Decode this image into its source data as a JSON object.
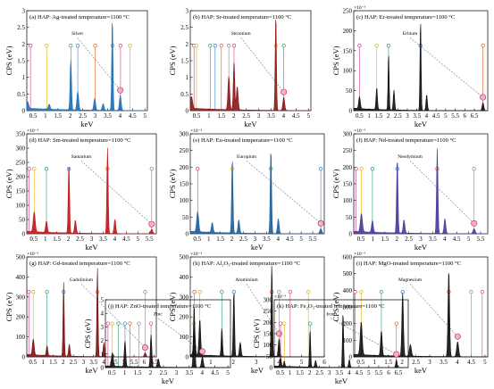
{
  "figure": {
    "panels": [
      {
        "label": "(a)",
        "caption": "HAP: Ag-treated temperature=1100 °C",
        "element_label": "Silver",
        "ylabel": "CPS (eV)",
        "xlabel": "keV",
        "exponent": "",
        "color": "#1f6fb8",
        "chart_data": {
          "type": "line",
          "xlim": [
            0.25,
            5.1
          ],
          "ylim": [
            0,
            3.0
          ],
          "xticks": [
            0.5,
            1.0,
            1.5,
            2.0,
            2.5,
            3.0,
            3.5,
            4.0,
            4.5,
            5.0
          ],
          "yticks": [
            0,
            0.5,
            1.0,
            1.5,
            2.0,
            2.5,
            3.0
          ],
          "peaks": [
            {
              "x": 0.28,
              "y": 0.2,
              "w": 0.06
            },
            {
              "x": 1.15,
              "y": 0.15,
              "w": 0.05
            },
            {
              "x": 2.02,
              "y": 1.5,
              "w": 0.04
            },
            {
              "x": 2.3,
              "y": 0.55,
              "w": 0.05
            },
            {
              "x": 2.98,
              "y": 0.35,
              "w": 0.05
            },
            {
              "x": 3.32,
              "y": 0.2,
              "w": 0.05
            },
            {
              "x": 3.69,
              "y": 2.75,
              "w": 0.035
            },
            {
              "x": 4.01,
              "y": 0.45,
              "w": 0.05
            }
          ],
          "markers": [
            0.4,
            1.05,
            2.02,
            2.3,
            3.0,
            3.7,
            4.02,
            4.4
          ]
        }
      },
      {
        "label": "(b)",
        "caption": "HAP: Sr-treated temperature=1100 °C",
        "element_label": "Strontium",
        "ylabel": "CPS (eV)",
        "xlabel": "keV",
        "exponent": "",
        "color": "#8b1a1a",
        "chart_data": {
          "type": "line",
          "xlim": [
            0.25,
            5.1
          ],
          "ylim": [
            0,
            3.0
          ],
          "xticks": [
            0.5,
            1.0,
            1.5,
            2.0,
            2.5,
            3.0,
            3.5,
            4.0,
            4.5,
            5.0
          ],
          "yticks": [
            0,
            0.5,
            1.0,
            1.5,
            2.0,
            2.5,
            3.0
          ],
          "peaks": [
            {
              "x": 0.3,
              "y": 0.35,
              "w": 0.06
            },
            {
              "x": 1.8,
              "y": 1.0,
              "w": 0.05
            },
            {
              "x": 2.01,
              "y": 1.45,
              "w": 0.04
            },
            {
              "x": 2.14,
              "y": 0.7,
              "w": 0.05
            },
            {
              "x": 3.69,
              "y": 2.85,
              "w": 0.035
            },
            {
              "x": 4.01,
              "y": 0.4,
              "w": 0.05
            }
          ],
          "markers": [
            0.4,
            0.5,
            1.05,
            1.25,
            1.5,
            1.8,
            2.01,
            3.69,
            4.01
          ]
        }
      },
      {
        "label": "(c)",
        "caption": "HAP: Er-treated temperature=1100 °C",
        "element_label": "Erbium",
        "ylabel": "CPS (eV)",
        "xlabel": "keV",
        "exponent": "×10⁻³",
        "color": "#111111",
        "chart_data": {
          "type": "line",
          "xlim": [
            0.2,
            7.2
          ],
          "ylim": [
            0,
            250
          ],
          "xticks": [
            0.5,
            1,
            1.5,
            2,
            2.5,
            3,
            3.5,
            4,
            4.5,
            5,
            5.5,
            6,
            6.5
          ],
          "yticks": [
            0,
            50,
            100,
            150,
            200,
            250
          ],
          "peaks": [
            {
              "x": 0.5,
              "y": 30,
              "w": 0.06
            },
            {
              "x": 1.4,
              "y": 55,
              "w": 0.05
            },
            {
              "x": 2.02,
              "y": 145,
              "w": 0.04
            },
            {
              "x": 2.3,
              "y": 50,
              "w": 0.05
            },
            {
              "x": 3.69,
              "y": 230,
              "w": 0.04
            },
            {
              "x": 4.01,
              "y": 40,
              "w": 0.05
            },
            {
              "x": 6.95,
              "y": 20,
              "w": 0.06
            }
          ],
          "markers": [
            0.5,
            1.4,
            2.02,
            3.69,
            6.95
          ]
        }
      },
      {
        "label": "(d)",
        "caption": "HAP: Sm-treated temperature=1100 °C",
        "element_label": "Samarium",
        "ylabel": "CPS (eV)",
        "xlabel": "keV",
        "exponent": "×10⁻³",
        "color": "#c4161c",
        "chart_data": {
          "type": "line",
          "xlim": [
            0.2,
            5.8
          ],
          "ylim": [
            0,
            350
          ],
          "xticks": [
            0.5,
            1,
            1.5,
            2,
            2.5,
            3,
            3.5,
            4,
            4.5,
            5,
            5.5
          ],
          "yticks": [
            0,
            50,
            100,
            150,
            200,
            250,
            300,
            350
          ],
          "peaks": [
            {
              "x": 0.52,
              "y": 70,
              "w": 0.06
            },
            {
              "x": 1.05,
              "y": 40,
              "w": 0.05
            },
            {
              "x": 2.02,
              "y": 245,
              "w": 0.04
            },
            {
              "x": 2.3,
              "y": 45,
              "w": 0.05
            },
            {
              "x": 3.69,
              "y": 300,
              "w": 0.04
            },
            {
              "x": 4.01,
              "y": 50,
              "w": 0.05
            },
            {
              "x": 5.6,
              "y": 15,
              "w": 0.06
            }
          ],
          "markers": [
            0.3,
            0.52,
            1.05,
            2.02,
            3.69,
            5.6
          ]
        }
      },
      {
        "label": "(e)",
        "caption": "HAP: Eu-treated temperature=1100 °C",
        "element_label": "Europium",
        "ylabel": "CPS (eV)",
        "xlabel": "keV",
        "exponent": "×10⁻³",
        "color": "#1f5f9e",
        "chart_data": {
          "type": "line",
          "xlim": [
            0.2,
            6.0
          ],
          "ylim": [
            0,
            300
          ],
          "xticks": [
            0.5,
            1,
            1.5,
            2,
            2.5,
            3,
            3.5,
            4,
            4.5,
            5,
            5.5
          ],
          "yticks": [
            0,
            50,
            100,
            150,
            200,
            250,
            300
          ],
          "peaks": [
            {
              "x": 0.52,
              "y": 60,
              "w": 0.06
            },
            {
              "x": 1.15,
              "y": 30,
              "w": 0.05
            },
            {
              "x": 2.02,
              "y": 225,
              "w": 0.04
            },
            {
              "x": 2.3,
              "y": 40,
              "w": 0.05
            },
            {
              "x": 3.69,
              "y": 255,
              "w": 0.04
            },
            {
              "x": 4.01,
              "y": 45,
              "w": 0.05
            },
            {
              "x": 5.85,
              "y": 15,
              "w": 0.06
            }
          ],
          "markers": [
            0.52,
            2.02,
            3.69,
            5.85
          ]
        }
      },
      {
        "label": "(f)",
        "caption": "HAP: Nd-treated temperature=1100 °C",
        "element_label": "Neodymium",
        "ylabel": "CPS (eV)",
        "xlabel": "keV",
        "exponent": "×10⁻³",
        "color": "#4b3a9e",
        "chart_data": {
          "type": "line",
          "xlim": [
            0.2,
            5.8
          ],
          "ylim": [
            0,
            300
          ],
          "xticks": [
            0.5,
            1,
            1.5,
            2,
            2.5,
            3,
            3.5,
            4,
            4.5,
            5,
            5.5
          ],
          "yticks": [
            0,
            50,
            100,
            150,
            200,
            250,
            300
          ],
          "peaks": [
            {
              "x": 0.52,
              "y": 55,
              "w": 0.06
            },
            {
              "x": 0.98,
              "y": 35,
              "w": 0.05
            },
            {
              "x": 2.02,
              "y": 225,
              "w": 0.04
            },
            {
              "x": 2.3,
              "y": 40,
              "w": 0.05
            },
            {
              "x": 3.69,
              "y": 255,
              "w": 0.04
            },
            {
              "x": 4.01,
              "y": 45,
              "w": 0.05
            },
            {
              "x": 5.23,
              "y": 15,
              "w": 0.06
            }
          ],
          "markers": [
            0.3,
            0.52,
            0.98,
            2.02,
            3.69,
            5.23
          ]
        }
      },
      {
        "label": "(g)",
        "caption": "HAP: Gd-treated temperature=1100 °C",
        "element_label": "Gadolinium",
        "ylabel": "CPS (eV)",
        "xlabel": "keV",
        "exponent": "×10⁻³",
        "color": "#7a1416",
        "chart_data": {
          "type": "line",
          "xlim": [
            0.2,
            6.6
          ],
          "ylim": [
            0,
            500
          ],
          "xticks": [
            0.5,
            1,
            1.5,
            2,
            2.5,
            3,
            3.5,
            4,
            4.5,
            5,
            5.5,
            6,
            6.5
          ],
          "yticks": [
            0,
            100,
            200,
            300,
            400,
            500
          ],
          "peaks": [
            {
              "x": 0.52,
              "y": 80,
              "w": 0.06
            },
            {
              "x": 1.2,
              "y": 50,
              "w": 0.05
            },
            {
              "x": 2.02,
              "y": 370,
              "w": 0.04
            },
            {
              "x": 2.3,
              "y": 60,
              "w": 0.05
            },
            {
              "x": 3.69,
              "y": 450,
              "w": 0.04
            },
            {
              "x": 4.01,
              "y": 70,
              "w": 0.05
            },
            {
              "x": 6.05,
              "y": 20,
              "w": 0.06
            }
          ],
          "markers": [
            0.3,
            0.52,
            1.2,
            2.02,
            3.69,
            6.05
          ]
        }
      },
      {
        "label": "(h)",
        "caption": "HAP: Al₂O₃-treated temperature=1100 °C",
        "element_label": "Aluminium",
        "ylabel": "CPS (eV)",
        "xlabel": "keV",
        "exponent": "×10⁻³",
        "color": "#111111",
        "chart_data": {
          "type": "line",
          "xlim": [
            0.1,
            6.0
          ],
          "ylim": [
            0,
            500
          ],
          "xticks": [
            1,
            2,
            3,
            4,
            5,
            6
          ],
          "yticks": [
            0,
            100,
            200,
            300,
            400,
            500
          ],
          "peaks": [
            {
              "x": 0.28,
              "y": 150,
              "w": 0.05
            },
            {
              "x": 0.52,
              "y": 180,
              "w": 0.05
            },
            {
              "x": 1.49,
              "y": 140,
              "w": 0.04
            },
            {
              "x": 2.02,
              "y": 330,
              "w": 0.04
            },
            {
              "x": 2.3,
              "y": 70,
              "w": 0.05
            },
            {
              "x": 3.69,
              "y": 460,
              "w": 0.04
            },
            {
              "x": 4.01,
              "y": 90,
              "w": 0.05
            }
          ],
          "markers": [
            0.28,
            0.52,
            1.49,
            2.02,
            3.69,
            4.01,
            4.5,
            5.3
          ]
        }
      },
      {
        "label": "(i)",
        "caption": "HAP: MgO-treated temperature=1100 °C",
        "element_label": "Magnesium",
        "ylabel": "CPS (eV)",
        "xlabel": "keV",
        "exponent": "×10⁻³",
        "color": "#111111",
        "chart_data": {
          "type": "line",
          "xlim": [
            0.25,
            5.1
          ],
          "ylim": [
            0,
            600
          ],
          "xticks": [
            0.5,
            1,
            1.5,
            2,
            2.5,
            3,
            3.5,
            4,
            4.5,
            5
          ],
          "yticks": [
            0,
            100,
            200,
            300,
            400,
            500,
            600
          ],
          "peaks": [
            {
              "x": 0.52,
              "y": 200,
              "w": 0.05
            },
            {
              "x": 1.25,
              "y": 150,
              "w": 0.04
            },
            {
              "x": 2.02,
              "y": 380,
              "w": 0.04
            },
            {
              "x": 2.3,
              "y": 70,
              "w": 0.05
            },
            {
              "x": 3.69,
              "y": 520,
              "w": 0.04
            },
            {
              "x": 4.01,
              "y": 90,
              "w": 0.05
            }
          ],
          "markers": [
            0.3,
            0.52,
            1.25,
            2.02,
            3.69,
            4.5,
            4.9
          ]
        }
      },
      {
        "label": "(j)",
        "caption": "HAP: ZnO-treated temperature=1100 °C",
        "element_label": "Zinc",
        "ylabel": "CPS (eV)",
        "xlabel": "keV",
        "exponent": "",
        "color": "#111111",
        "chart_data": {
          "type": "line",
          "xlim": [
            0.25,
            5.1
          ],
          "ylim": [
            0,
            5.0
          ],
          "xticks": [
            0.5,
            1.0,
            1.5,
            2.0,
            2.5,
            3.0,
            3.5,
            4.0,
            4.5,
            5.0
          ],
          "yticks": [
            0,
            1,
            2,
            3,
            4,
            5
          ],
          "peaks": [
            {
              "x": 0.52,
              "y": 1.0,
              "w": 0.05
            },
            {
              "x": 1.01,
              "y": 1.9,
              "w": 0.04
            },
            {
              "x": 2.02,
              "y": 2.4,
              "w": 0.04
            },
            {
              "x": 2.3,
              "y": 0.6,
              "w": 0.05
            },
            {
              "x": 3.69,
              "y": 4.6,
              "w": 0.04
            },
            {
              "x": 4.01,
              "y": 0.8,
              "w": 0.05
            }
          ],
          "markers": [
            0.35,
            0.52,
            0.75,
            1.01,
            1.2,
            1.55,
            2.02,
            3.69
          ]
        }
      },
      {
        "label": "(k)",
        "caption": "HAP: Fe₂O₃-treated temperature=1100 °C",
        "element_label": "Iron",
        "ylabel": "CPS (eV)",
        "xlabel": "keV",
        "exponent": "×10⁻³",
        "color": "#111111",
        "chart_data": {
          "type": "line",
          "xlim": [
            0.2,
            7.0
          ],
          "ylim": [
            0,
            300
          ],
          "xticks": [
            0.5,
            1,
            1.5,
            2,
            2.5,
            3,
            3.5,
            4,
            4.5,
            5,
            5.5,
            6,
            6.5
          ],
          "yticks": [
            0,
            50,
            100,
            150,
            200,
            250,
            300
          ],
          "peaks": [
            {
              "x": 0.52,
              "y": 40,
              "w": 0.05
            },
            {
              "x": 0.71,
              "y": 25,
              "w": 0.04
            },
            {
              "x": 2.02,
              "y": 170,
              "w": 0.04
            },
            {
              "x": 2.3,
              "y": 30,
              "w": 0.05
            },
            {
              "x": 3.69,
              "y": 250,
              "w": 0.04
            },
            {
              "x": 4.01,
              "y": 35,
              "w": 0.05
            },
            {
              "x": 6.4,
              "y": 35,
              "w": 0.05
            }
          ],
          "markers": [
            0.52,
            0.71,
            2.02,
            3.69,
            6.4
          ]
        }
      }
    ]
  }
}
